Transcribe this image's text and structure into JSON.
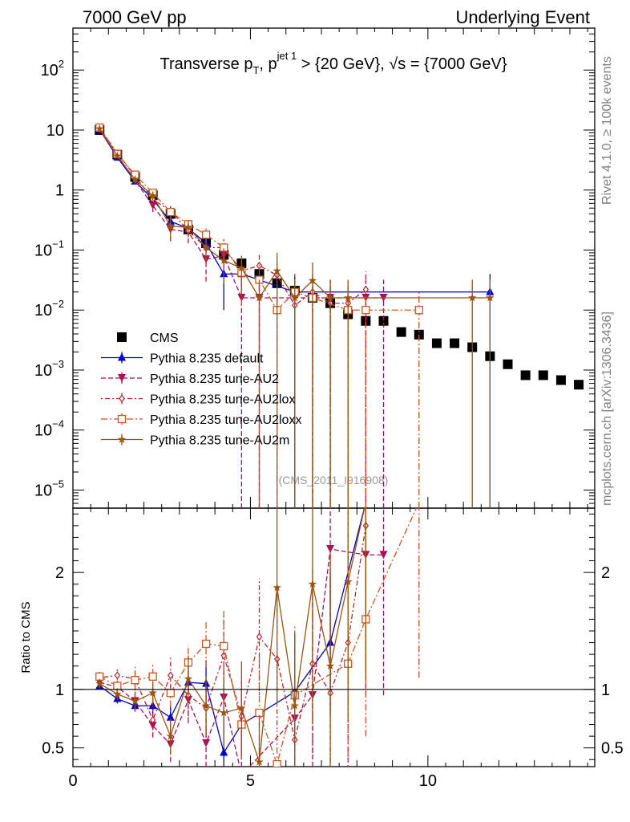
{
  "header": {
    "left": "7000 GeV pp",
    "right": "Underlying Event"
  },
  "side": {
    "top": "Rivet 4.1.0, ≥ 100k events",
    "bottom": "mcplots.cern.ch [arXiv:1306.3436]"
  },
  "title": {
    "main": "Transverse p",
    "t_sub": "T",
    "sep": ", p",
    "jet_sup": "jet 1",
    "rest": " > {20 GeV}, √s = {7000 GeV}"
  },
  "watermark": "(CMS_2011_I916908)",
  "ratio_ylabel": "Ratio to CMS",
  "ytick_main": [
    {
      "v": 100,
      "base": "10",
      "exp": "2"
    },
    {
      "v": 10,
      "base": "10",
      "exp": ""
    },
    {
      "v": 1,
      "base": "1",
      "exp": ""
    },
    {
      "v": 0.1,
      "base": "10",
      "exp": "−1"
    },
    {
      "v": 0.01,
      "base": "10",
      "exp": "−2"
    },
    {
      "v": 0.001,
      "base": "10",
      "exp": "−3"
    },
    {
      "v": 0.0001,
      "base": "10",
      "exp": "−4"
    },
    {
      "v": 1e-05,
      "base": "10",
      "exp": "−5"
    }
  ],
  "ytick_ratio": [
    {
      "v": 2,
      "label": "2"
    },
    {
      "v": 1,
      "label": "1"
    },
    {
      "v": 0.5,
      "label": "0.5"
    }
  ],
  "xtick": [
    {
      "v": 0,
      "label": "0"
    },
    {
      "v": 5,
      "label": "5"
    },
    {
      "v": 10,
      "label": "10"
    }
  ],
  "chart_data": [
    {
      "type": "scatter",
      "name": "main",
      "xlim": [
        0,
        14.7
      ],
      "ylim": [
        5e-06,
        500
      ],
      "yscale": "log",
      "legend": "middle-left",
      "series": [
        {
          "name": "CMS",
          "color": "#000000",
          "marker": "square",
          "style": "none",
          "points": [
            [
              0.75,
              10.0
            ],
            [
              1.25,
              3.9
            ],
            [
              1.75,
              1.65
            ],
            [
              2.25,
              0.82
            ],
            [
              2.75,
              0.4
            ],
            [
              3.25,
              0.22
            ],
            [
              3.75,
              0.13
            ],
            [
              4.25,
              0.083
            ],
            [
              4.75,
              0.06
            ],
            [
              5.25,
              0.04
            ],
            [
              5.75,
              0.028
            ],
            [
              6.25,
              0.021
            ],
            [
              6.75,
              0.016
            ],
            [
              7.25,
              0.013
            ],
            [
              7.75,
              0.0085
            ],
            [
              8.25,
              0.0066
            ],
            [
              8.75,
              0.0066
            ],
            [
              9.25,
              0.0043
            ],
            [
              9.75,
              0.0039
            ],
            [
              10.25,
              0.0028
            ],
            [
              10.75,
              0.0028
            ],
            [
              11.25,
              0.0024
            ],
            [
              11.75,
              0.0017
            ],
            [
              12.25,
              0.00125
            ],
            [
              12.75,
              0.00082
            ],
            [
              13.25,
              0.00082
            ],
            [
              13.75,
              0.00068
            ],
            [
              14.25,
              0.00057
            ]
          ]
        },
        {
          "name": "Pythia 8.235 default",
          "color": "#0000cc",
          "marker": "triangle-up",
          "style": "solid",
          "points": [
            [
              0.75,
              10.2,
              0.3
            ],
            [
              1.25,
              3.5,
              0.2
            ],
            [
              1.75,
              1.4,
              0.1
            ],
            [
              2.25,
              0.7,
              0.08
            ],
            [
              2.75,
              0.3,
              0.04
            ],
            [
              3.25,
              0.23,
              0.04
            ],
            [
              3.75,
              0.13,
              0.03
            ],
            [
              4.25,
              0.04,
              0.03
            ],
            [
              4.75,
              0.04,
              0.02
            ],
            [
              6.25,
              0.02,
              0.02
            ],
            [
              11.75,
              0.02,
              0.02
            ]
          ]
        },
        {
          "name": "Pythia 8.235 tune-AU2",
          "color": "#aa1155",
          "marker": "triangle-down",
          "style": "dashed",
          "points": [
            [
              0.75,
              10.2,
              0.4
            ],
            [
              1.25,
              3.8,
              0.3
            ],
            [
              1.75,
              1.45,
              0.15
            ],
            [
              2.25,
              0.55,
              0.12
            ],
            [
              2.75,
              0.22,
              0.08
            ],
            [
              3.25,
              0.2,
              0.07
            ],
            [
              3.75,
              0.07,
              0.04
            ],
            [
              4.25,
              0.08,
              0.05
            ],
            [
              4.75,
              0.016,
              0.016
            ],
            [
              5.25,
              0.016,
              0.016
            ],
            [
              6.25,
              0.016,
              0.016
            ],
            [
              6.75,
              0.016,
              0.016
            ],
            [
              7.25,
              0.016,
              0.016
            ],
            [
              8.25,
              0.016,
              0.016
            ],
            [
              8.75,
              0.016,
              0.016
            ]
          ]
        },
        {
          "name": "Pythia 8.235 tune-AU2lox",
          "color": "#bb2233",
          "marker": "diamond-open",
          "style": "dotdash",
          "points": [
            [
              0.75,
              10.8,
              0.4
            ],
            [
              1.25,
              4.1,
              0.3
            ],
            [
              1.75,
              1.7,
              0.2
            ],
            [
              2.25,
              0.7,
              0.15
            ],
            [
              2.75,
              0.45,
              0.12
            ],
            [
              3.25,
              0.21,
              0.07
            ],
            [
              3.75,
              0.11,
              0.05
            ],
            [
              4.25,
              0.11,
              0.05
            ],
            [
              4.75,
              0.045,
              0.03
            ],
            [
              5.25,
              0.055,
              0.03
            ],
            [
              5.75,
              0.038,
              0.03
            ],
            [
              6.25,
              0.012,
              0.012
            ],
            [
              6.75,
              0.02,
              0.02
            ],
            [
              7.25,
              0.013,
              0.013
            ],
            [
              7.75,
              0.013,
              0.013
            ],
            [
              8.25,
              0.022,
              0.022
            ]
          ]
        },
        {
          "name": "Pythia 8.235 tune-AU2loxx",
          "color": "#cc5522",
          "marker": "square-open",
          "style": "dashdot",
          "points": [
            [
              0.75,
              11.0,
              0.4
            ],
            [
              1.25,
              4.0,
              0.3
            ],
            [
              1.75,
              1.8,
              0.2
            ],
            [
              2.25,
              0.9,
              0.15
            ],
            [
              2.75,
              0.43,
              0.1
            ],
            [
              3.25,
              0.27,
              0.06
            ],
            [
              3.75,
              0.18,
              0.05
            ],
            [
              4.25,
              0.11,
              0.05
            ],
            [
              4.75,
              0.042,
              0.03
            ],
            [
              5.25,
              0.032,
              0.03
            ],
            [
              5.75,
              0.01,
              0.01
            ],
            [
              6.25,
              0.02,
              0.02
            ],
            [
              6.75,
              0.016,
              0.016
            ],
            [
              7.75,
              0.01,
              0.01
            ],
            [
              8.25,
              0.01,
              0.01
            ],
            [
              9.75,
              0.01,
              0.01
            ]
          ]
        },
        {
          "name": "Pythia 8.235 tune-AU2m",
          "color": "#995511",
          "marker": "star",
          "style": "solid",
          "points": [
            [
              0.75,
              10.5,
              0.4
            ],
            [
              1.25,
              3.7,
              0.3
            ],
            [
              1.75,
              1.5,
              0.2
            ],
            [
              2.25,
              0.8,
              0.15
            ],
            [
              2.75,
              0.25,
              0.1
            ],
            [
              3.25,
              0.24,
              0.07
            ],
            [
              3.75,
              0.11,
              0.05
            ],
            [
              4.25,
              0.067,
              0.04
            ],
            [
              4.75,
              0.05,
              0.03
            ],
            [
              5.25,
              0.016,
              0.016
            ],
            [
              5.75,
              0.045,
              0.045
            ],
            [
              6.25,
              0.016,
              0.016
            ],
            [
              6.75,
              0.031,
              0.031
            ],
            [
              7.25,
              0.016,
              0.016
            ],
            [
              7.75,
              0.016,
              0.016
            ],
            [
              11.25,
              0.016,
              0.016
            ],
            [
              11.75,
              0.016,
              0.016
            ]
          ]
        }
      ]
    },
    {
      "type": "line",
      "name": "ratio",
      "ylabel": "Ratio to CMS",
      "xlim": [
        0,
        14.7
      ],
      "ylim": [
        0.34,
        2.55
      ],
      "series": [
        {
          "name": "Pythia 8.235 default",
          "color": "#0000cc",
          "marker": "triangle-up",
          "style": "solid",
          "points": [
            [
              0.75,
              1.03,
              0.03
            ],
            [
              1.25,
              0.92,
              0.04
            ],
            [
              1.75,
              0.86,
              0.05
            ],
            [
              2.25,
              0.86,
              0.07
            ],
            [
              2.75,
              0.76,
              0.1
            ],
            [
              3.25,
              1.06,
              0.15
            ],
            [
              3.75,
              1.05,
              0.2
            ],
            [
              4.25,
              0.46,
              0.3
            ],
            [
              4.75,
              0.7,
              0.3
            ],
            [
              6.25,
              0.98,
              0.5
            ],
            [
              7.25,
              1.4,
              0.6
            ],
            [
              8.25,
              2.6,
              1.0
            ]
          ]
        },
        {
          "name": "Pythia 8.235 tune-AU2",
          "color": "#aa1155",
          "marker": "triangle-down",
          "style": "dashed",
          "points": [
            [
              0.75,
              1.06,
              0.04
            ],
            [
              1.25,
              1.02,
              0.06
            ],
            [
              1.75,
              0.9,
              0.08
            ],
            [
              2.25,
              0.69,
              0.1
            ],
            [
              2.75,
              0.53,
              0.15
            ],
            [
              3.25,
              0.91,
              0.2
            ],
            [
              3.75,
              0.54,
              0.25
            ],
            [
              4.25,
              0.93,
              0.3
            ],
            [
              4.75,
              0.27,
              0.3
            ],
            [
              6.25,
              0.75,
              0.7
            ],
            [
              6.75,
              0.95,
              1.0
            ],
            [
              7.25,
              2.2,
              1.2
            ],
            [
              8.25,
              2.15,
              1.2
            ],
            [
              8.75,
              2.15,
              1.2
            ]
          ]
        },
        {
          "name": "Pythia 8.235 tune-AU2lox",
          "color": "#bb2233",
          "marker": "diamond-open",
          "style": "dotdash",
          "points": [
            [
              0.75,
              1.1,
              0.05
            ],
            [
              1.25,
              1.12,
              0.06
            ],
            [
              1.75,
              1.09,
              0.1
            ],
            [
              2.25,
              0.74,
              0.12
            ],
            [
              2.75,
              1.12,
              0.15
            ],
            [
              3.25,
              0.95,
              0.2
            ],
            [
              3.75,
              0.84,
              0.25
            ],
            [
              4.25,
              1.29,
              0.35
            ],
            [
              4.75,
              0.77,
              0.35
            ],
            [
              5.25,
              1.45,
              0.5
            ],
            [
              5.75,
              1.26,
              0.6
            ],
            [
              6.25,
              0.57,
              0.6
            ],
            [
              6.75,
              1.22,
              0.8
            ],
            [
              7.25,
              0.97,
              1.0
            ],
            [
              7.75,
              1.4,
              1.2
            ],
            [
              8.25,
              2.4,
              1.2
            ]
          ]
        },
        {
          "name": "Pythia 8.235 tune-AU2loxx",
          "color": "#cc5522",
          "marker": "square-open",
          "style": "dashdot",
          "points": [
            [
              0.75,
              1.11,
              0.05
            ],
            [
              1.25,
              1.03,
              0.06
            ],
            [
              1.75,
              1.08,
              0.08
            ],
            [
              2.25,
              1.11,
              0.1
            ],
            [
              2.75,
              0.97,
              0.12
            ],
            [
              3.25,
              1.23,
              0.15
            ],
            [
              3.75,
              1.39,
              0.2
            ],
            [
              4.25,
              1.37,
              0.3
            ],
            [
              4.75,
              0.7,
              0.3
            ],
            [
              5.25,
              0.8,
              0.5
            ],
            [
              5.75,
              0.36,
              0.3
            ],
            [
              6.25,
              0.95,
              0.6
            ],
            [
              7.75,
              1.22,
              0.8
            ],
            [
              8.25,
              1.6,
              1.0
            ],
            [
              9.75,
              2.6,
              1.5
            ]
          ]
        },
        {
          "name": "Pythia 8.235 tune-AU2m",
          "color": "#995511",
          "marker": "star",
          "style": "solid",
          "points": [
            [
              0.75,
              1.05,
              0.04
            ],
            [
              1.25,
              0.96,
              0.05
            ],
            [
              1.75,
              0.9,
              0.08
            ],
            [
              2.25,
              0.97,
              0.1
            ],
            [
              2.75,
              0.6,
              0.15
            ],
            [
              3.25,
              1.09,
              0.2
            ],
            [
              3.75,
              0.86,
              0.25
            ],
            [
              4.25,
              0.8,
              0.3
            ],
            [
              4.75,
              0.84,
              0.4
            ],
            [
              5.25,
              0.38,
              0.4
            ],
            [
              5.75,
              1.87,
              1.0
            ],
            [
              6.25,
              0.86,
              0.6
            ],
            [
              6.75,
              1.9,
              1.2
            ],
            [
              7.25,
              1.2,
              1.0
            ],
            [
              7.75,
              1.92,
              1.2
            ],
            [
              8.25,
              2.6,
              1.5
            ]
          ]
        }
      ]
    }
  ]
}
